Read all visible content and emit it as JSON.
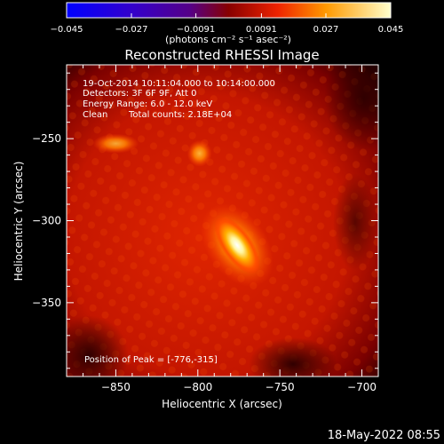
{
  "chart_data": {
    "type": "heatmap",
    "title": "Reconstructed RHESSI Image",
    "xlabel": "Heliocentric X (arcsec)",
    "ylabel": "Heliocentric Y (arcsec)",
    "xlim": [
      -880,
      -690
    ],
    "ylim": [
      -395,
      -205
    ],
    "xticks": [
      -850,
      -800,
      -750,
      -700
    ],
    "xtick_labels": [
      "−850",
      "−800",
      "−750",
      "−700"
    ],
    "yticks": [
      -250,
      -300,
      -350
    ],
    "ytick_labels": [
      "−250",
      "−300",
      "−350"
    ],
    "colorbar": {
      "min": -0.045,
      "max": 0.045,
      "ticks": [
        -0.045,
        -0.027,
        -0.0091,
        0.0091,
        0.027,
        0.045
      ],
      "tick_labels": [
        "−0.045",
        "−0.027",
        "−0.0091",
        "0.0091",
        "0.027",
        "0.045"
      ],
      "unit_label": "(photons cm⁻² s⁻¹ asec⁻²)"
    },
    "annotations": {
      "time": "19-Oct-2014 10:11:04.000 to 10:14:00.000",
      "detectors": "Detectors: 3F 6F 9F, Att 0",
      "energy": "Energy Range: 6.0 - 12.0 keV",
      "method": "Clean",
      "counts": "Total counts: 2.18E+04",
      "peak": "Position of Peak = [-776,-315]"
    },
    "sources": [
      {
        "x": -776,
        "y": -315,
        "intensity": 1.0
      },
      {
        "x": -799,
        "y": -259,
        "intensity": 0.62
      },
      {
        "x": -850,
        "y": -253,
        "intensity": 0.55
      }
    ]
  },
  "footer": {
    "timestamp": "18-May-2022 08:55"
  }
}
